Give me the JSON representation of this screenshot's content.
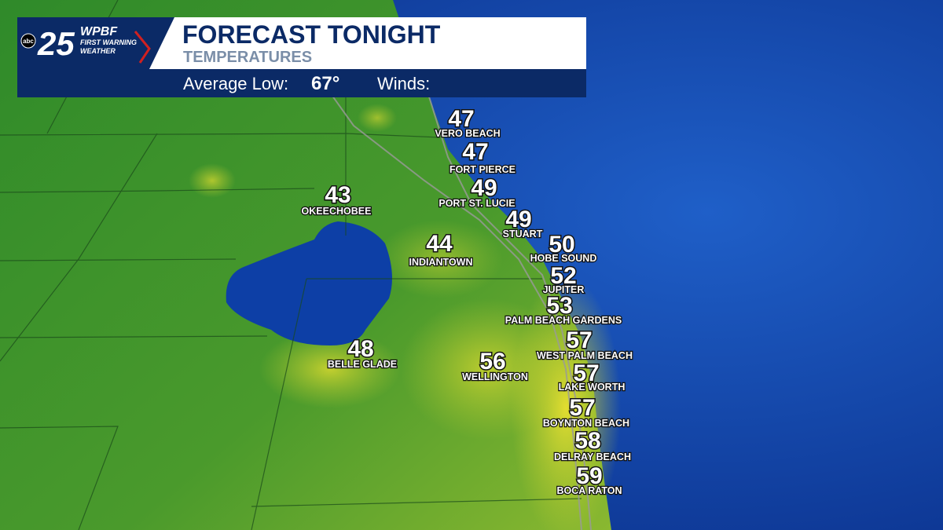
{
  "logo": {
    "network": "abc",
    "channel": "25",
    "station": "WPBF",
    "brand_line1": "FIRST WARNING",
    "brand_line2": "WEATHER"
  },
  "header": {
    "title": "FORECAST TONIGHT",
    "subtitle": "TEMPERATURES",
    "average_low_label": "Average Low:",
    "average_low_value": "67°",
    "winds_label": "Winds:"
  },
  "cities": [
    {
      "temp": 47,
      "name": "VERO BEACH"
    },
    {
      "temp": 47,
      "name": "FORT PIERCE"
    },
    {
      "temp": 49,
      "name": "PORT ST. LUCIE"
    },
    {
      "temp": 49,
      "name": "STUART"
    },
    {
      "temp": 50,
      "name": "HOBE SOUND"
    },
    {
      "temp": 52,
      "name": "JUPITER"
    },
    {
      "temp": 53,
      "name": "PALM BEACH GARDENS"
    },
    {
      "temp": 57,
      "name": "WEST PALM BEACH"
    },
    {
      "temp": 57,
      "name": "LAKE WORTH"
    },
    {
      "temp": 57,
      "name": "BOYNTON BEACH"
    },
    {
      "temp": 58,
      "name": "DELRAY BEACH"
    },
    {
      "temp": 59,
      "name": "BOCA RATON"
    },
    {
      "temp": 43,
      "name": "OKEECHOBEE"
    },
    {
      "temp": 44,
      "name": "INDIANTOWN"
    },
    {
      "temp": 48,
      "name": "BELLE GLADE"
    },
    {
      "temp": 56,
      "name": "WELLINGTON"
    }
  ]
}
